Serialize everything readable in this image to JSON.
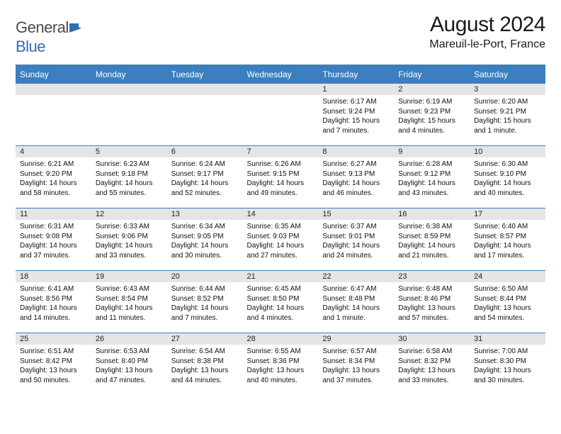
{
  "logo": {
    "text_general": "General",
    "text_blue": "Blue"
  },
  "title": "August 2024",
  "location": "Mareuil-le-Port, France",
  "weekdays": [
    "Sunday",
    "Monday",
    "Tuesday",
    "Wednesday",
    "Thursday",
    "Friday",
    "Saturday"
  ],
  "colors": {
    "header_bg": "#3b7fbf",
    "header_text": "#ffffff",
    "daynum_bg": "#e5e5e5",
    "border": "#3b7fbf",
    "body_bg": "#ffffff"
  },
  "typography": {
    "title_fontsize": 30,
    "location_fontsize": 16,
    "weekday_fontsize": 12,
    "daynum_fontsize": 11,
    "cell_fontsize": 10
  },
  "layout": {
    "weeks": 5,
    "cols": 7,
    "first_day_col": 4
  },
  "days": [
    {
      "n": "1",
      "sunrise": "Sunrise: 6:17 AM",
      "sunset": "Sunset: 9:24 PM",
      "daylight": "Daylight: 15 hours and 7 minutes."
    },
    {
      "n": "2",
      "sunrise": "Sunrise: 6:19 AM",
      "sunset": "Sunset: 9:23 PM",
      "daylight": "Daylight: 15 hours and 4 minutes."
    },
    {
      "n": "3",
      "sunrise": "Sunrise: 6:20 AM",
      "sunset": "Sunset: 9:21 PM",
      "daylight": "Daylight: 15 hours and 1 minute."
    },
    {
      "n": "4",
      "sunrise": "Sunrise: 6:21 AM",
      "sunset": "Sunset: 9:20 PM",
      "daylight": "Daylight: 14 hours and 58 minutes."
    },
    {
      "n": "5",
      "sunrise": "Sunrise: 6:23 AM",
      "sunset": "Sunset: 9:18 PM",
      "daylight": "Daylight: 14 hours and 55 minutes."
    },
    {
      "n": "6",
      "sunrise": "Sunrise: 6:24 AM",
      "sunset": "Sunset: 9:17 PM",
      "daylight": "Daylight: 14 hours and 52 minutes."
    },
    {
      "n": "7",
      "sunrise": "Sunrise: 6:26 AM",
      "sunset": "Sunset: 9:15 PM",
      "daylight": "Daylight: 14 hours and 49 minutes."
    },
    {
      "n": "8",
      "sunrise": "Sunrise: 6:27 AM",
      "sunset": "Sunset: 9:13 PM",
      "daylight": "Daylight: 14 hours and 46 minutes."
    },
    {
      "n": "9",
      "sunrise": "Sunrise: 6:28 AM",
      "sunset": "Sunset: 9:12 PM",
      "daylight": "Daylight: 14 hours and 43 minutes."
    },
    {
      "n": "10",
      "sunrise": "Sunrise: 6:30 AM",
      "sunset": "Sunset: 9:10 PM",
      "daylight": "Daylight: 14 hours and 40 minutes."
    },
    {
      "n": "11",
      "sunrise": "Sunrise: 6:31 AM",
      "sunset": "Sunset: 9:08 PM",
      "daylight": "Daylight: 14 hours and 37 minutes."
    },
    {
      "n": "12",
      "sunrise": "Sunrise: 6:33 AM",
      "sunset": "Sunset: 9:06 PM",
      "daylight": "Daylight: 14 hours and 33 minutes."
    },
    {
      "n": "13",
      "sunrise": "Sunrise: 6:34 AM",
      "sunset": "Sunset: 9:05 PM",
      "daylight": "Daylight: 14 hours and 30 minutes."
    },
    {
      "n": "14",
      "sunrise": "Sunrise: 6:35 AM",
      "sunset": "Sunset: 9:03 PM",
      "daylight": "Daylight: 14 hours and 27 minutes."
    },
    {
      "n": "15",
      "sunrise": "Sunrise: 6:37 AM",
      "sunset": "Sunset: 9:01 PM",
      "daylight": "Daylight: 14 hours and 24 minutes."
    },
    {
      "n": "16",
      "sunrise": "Sunrise: 6:38 AM",
      "sunset": "Sunset: 8:59 PM",
      "daylight": "Daylight: 14 hours and 21 minutes."
    },
    {
      "n": "17",
      "sunrise": "Sunrise: 6:40 AM",
      "sunset": "Sunset: 8:57 PM",
      "daylight": "Daylight: 14 hours and 17 minutes."
    },
    {
      "n": "18",
      "sunrise": "Sunrise: 6:41 AM",
      "sunset": "Sunset: 8:56 PM",
      "daylight": "Daylight: 14 hours and 14 minutes."
    },
    {
      "n": "19",
      "sunrise": "Sunrise: 6:43 AM",
      "sunset": "Sunset: 8:54 PM",
      "daylight": "Daylight: 14 hours and 11 minutes."
    },
    {
      "n": "20",
      "sunrise": "Sunrise: 6:44 AM",
      "sunset": "Sunset: 8:52 PM",
      "daylight": "Daylight: 14 hours and 7 minutes."
    },
    {
      "n": "21",
      "sunrise": "Sunrise: 6:45 AM",
      "sunset": "Sunset: 8:50 PM",
      "daylight": "Daylight: 14 hours and 4 minutes."
    },
    {
      "n": "22",
      "sunrise": "Sunrise: 6:47 AM",
      "sunset": "Sunset: 8:48 PM",
      "daylight": "Daylight: 14 hours and 1 minute."
    },
    {
      "n": "23",
      "sunrise": "Sunrise: 6:48 AM",
      "sunset": "Sunset: 8:46 PM",
      "daylight": "Daylight: 13 hours and 57 minutes."
    },
    {
      "n": "24",
      "sunrise": "Sunrise: 6:50 AM",
      "sunset": "Sunset: 8:44 PM",
      "daylight": "Daylight: 13 hours and 54 minutes."
    },
    {
      "n": "25",
      "sunrise": "Sunrise: 6:51 AM",
      "sunset": "Sunset: 8:42 PM",
      "daylight": "Daylight: 13 hours and 50 minutes."
    },
    {
      "n": "26",
      "sunrise": "Sunrise: 6:53 AM",
      "sunset": "Sunset: 8:40 PM",
      "daylight": "Daylight: 13 hours and 47 minutes."
    },
    {
      "n": "27",
      "sunrise": "Sunrise: 6:54 AM",
      "sunset": "Sunset: 8:38 PM",
      "daylight": "Daylight: 13 hours and 44 minutes."
    },
    {
      "n": "28",
      "sunrise": "Sunrise: 6:55 AM",
      "sunset": "Sunset: 8:36 PM",
      "daylight": "Daylight: 13 hours and 40 minutes."
    },
    {
      "n": "29",
      "sunrise": "Sunrise: 6:57 AM",
      "sunset": "Sunset: 8:34 PM",
      "daylight": "Daylight: 13 hours and 37 minutes."
    },
    {
      "n": "30",
      "sunrise": "Sunrise: 6:58 AM",
      "sunset": "Sunset: 8:32 PM",
      "daylight": "Daylight: 13 hours and 33 minutes."
    },
    {
      "n": "31",
      "sunrise": "Sunrise: 7:00 AM",
      "sunset": "Sunset: 8:30 PM",
      "daylight": "Daylight: 13 hours and 30 minutes."
    }
  ]
}
